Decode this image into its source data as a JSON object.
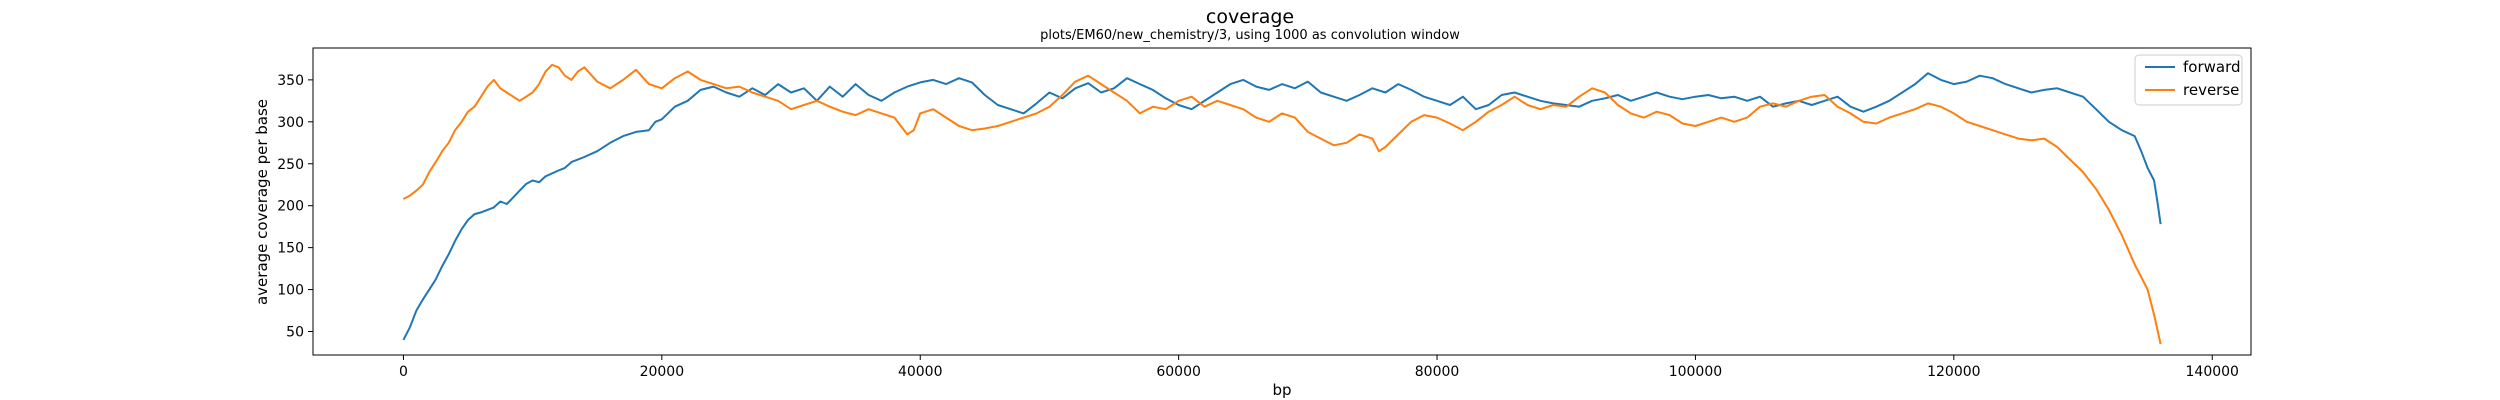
{
  "chart_data": {
    "type": "line",
    "title": "coverage",
    "subtitle": "plots/EM60/new_chemistry/3, using 1000 as convolution window",
    "xlabel": "bp",
    "ylabel": "average coverage per base",
    "xlim": [
      -7000,
      143000
    ],
    "ylim": [
      22,
      388
    ],
    "x_ticks": [
      0,
      20000,
      40000,
      60000,
      80000,
      100000,
      120000,
      140000
    ],
    "y_ticks": [
      50,
      100,
      150,
      200,
      250,
      300,
      350
    ],
    "grid": false,
    "legend_position": "top-right",
    "series": [
      {
        "name": "forward",
        "color": "#1f77b4",
        "points": [
          [
            0,
            40
          ],
          [
            500,
            55
          ],
          [
            1000,
            75
          ],
          [
            1500,
            88
          ],
          [
            2000,
            100
          ],
          [
            2500,
            112
          ],
          [
            3000,
            128
          ],
          [
            3500,
            142
          ],
          [
            4000,
            158
          ],
          [
            4500,
            172
          ],
          [
            5000,
            183
          ],
          [
            5500,
            190
          ],
          [
            6000,
            192
          ],
          [
            6500,
            195
          ],
          [
            7000,
            198
          ],
          [
            7500,
            205
          ],
          [
            8000,
            202
          ],
          [
            8500,
            210
          ],
          [
            9000,
            218
          ],
          [
            9500,
            226
          ],
          [
            10000,
            230
          ],
          [
            10500,
            228
          ],
          [
            11000,
            235
          ],
          [
            12000,
            242
          ],
          [
            12500,
            245
          ],
          [
            13000,
            252
          ],
          [
            14000,
            258
          ],
          [
            15000,
            265
          ],
          [
            16000,
            275
          ],
          [
            17000,
            283
          ],
          [
            18000,
            288
          ],
          [
            19000,
            290
          ],
          [
            19500,
            300
          ],
          [
            20000,
            303
          ],
          [
            21000,
            318
          ],
          [
            22000,
            325
          ],
          [
            23000,
            338
          ],
          [
            24000,
            342
          ],
          [
            25000,
            335
          ],
          [
            26000,
            330
          ],
          [
            27000,
            340
          ],
          [
            28000,
            332
          ],
          [
            29000,
            345
          ],
          [
            30000,
            335
          ],
          [
            31000,
            340
          ],
          [
            32000,
            325
          ],
          [
            33000,
            342
          ],
          [
            34000,
            330
          ],
          [
            35000,
            345
          ],
          [
            36000,
            332
          ],
          [
            37000,
            325
          ],
          [
            38000,
            335
          ],
          [
            39000,
            342
          ],
          [
            40000,
            347
          ],
          [
            41000,
            350
          ],
          [
            42000,
            345
          ],
          [
            43000,
            352
          ],
          [
            44000,
            347
          ],
          [
            45000,
            332
          ],
          [
            46000,
            320
          ],
          [
            47000,
            315
          ],
          [
            48000,
            310
          ],
          [
            49000,
            322
          ],
          [
            50000,
            335
          ],
          [
            51000,
            328
          ],
          [
            52000,
            340
          ],
          [
            53000,
            346
          ],
          [
            54000,
            335
          ],
          [
            55000,
            340
          ],
          [
            56000,
            352
          ],
          [
            57000,
            345
          ],
          [
            58000,
            338
          ],
          [
            59000,
            328
          ],
          [
            60000,
            320
          ],
          [
            61000,
            315
          ],
          [
            62000,
            325
          ],
          [
            63000,
            335
          ],
          [
            64000,
            345
          ],
          [
            65000,
            350
          ],
          [
            66000,
            342
          ],
          [
            67000,
            338
          ],
          [
            68000,
            345
          ],
          [
            69000,
            340
          ],
          [
            70000,
            348
          ],
          [
            71000,
            335
          ],
          [
            72000,
            330
          ],
          [
            73000,
            325
          ],
          [
            74000,
            332
          ],
          [
            75000,
            340
          ],
          [
            76000,
            335
          ],
          [
            77000,
            345
          ],
          [
            78000,
            338
          ],
          [
            79000,
            330
          ],
          [
            80000,
            325
          ],
          [
            81000,
            320
          ],
          [
            82000,
            330
          ],
          [
            83000,
            315
          ],
          [
            84000,
            320
          ],
          [
            85000,
            332
          ],
          [
            86000,
            335
          ],
          [
            87000,
            330
          ],
          [
            88000,
            325
          ],
          [
            89000,
            322
          ],
          [
            90000,
            320
          ],
          [
            91000,
            318
          ],
          [
            92000,
            325
          ],
          [
            93000,
            328
          ],
          [
            94000,
            332
          ],
          [
            95000,
            325
          ],
          [
            96000,
            330
          ],
          [
            97000,
            335
          ],
          [
            98000,
            330
          ],
          [
            99000,
            327
          ],
          [
            100000,
            330
          ],
          [
            101000,
            332
          ],
          [
            102000,
            328
          ],
          [
            103000,
            330
          ],
          [
            104000,
            325
          ],
          [
            105000,
            330
          ],
          [
            106000,
            318
          ],
          [
            107000,
            322
          ],
          [
            108000,
            325
          ],
          [
            109000,
            320
          ],
          [
            110000,
            325
          ],
          [
            111000,
            330
          ],
          [
            112000,
            318
          ],
          [
            113000,
            312
          ],
          [
            114000,
            318
          ],
          [
            115000,
            325
          ],
          [
            116000,
            335
          ],
          [
            117000,
            345
          ],
          [
            118000,
            358
          ],
          [
            119000,
            350
          ],
          [
            120000,
            345
          ],
          [
            121000,
            348
          ],
          [
            122000,
            355
          ],
          [
            123000,
            352
          ],
          [
            124000,
            345
          ],
          [
            125000,
            340
          ],
          [
            126000,
            335
          ],
          [
            127000,
            338
          ],
          [
            128000,
            340
          ],
          [
            129000,
            335
          ],
          [
            130000,
            330
          ],
          [
            131000,
            315
          ],
          [
            132000,
            300
          ],
          [
            133000,
            290
          ],
          [
            134000,
            283
          ],
          [
            134500,
            265
          ],
          [
            135000,
            245
          ],
          [
            135500,
            230
          ],
          [
            135800,
            200
          ],
          [
            136000,
            178
          ]
        ]
      },
      {
        "name": "reverse",
        "color": "#ff7f0e",
        "points": [
          [
            0,
            208
          ],
          [
            500,
            212
          ],
          [
            1000,
            218
          ],
          [
            1500,
            225
          ],
          [
            2000,
            240
          ],
          [
            2500,
            252
          ],
          [
            3000,
            265
          ],
          [
            3500,
            275
          ],
          [
            4000,
            290
          ],
          [
            4500,
            300
          ],
          [
            5000,
            312
          ],
          [
            5500,
            318
          ],
          [
            6000,
            330
          ],
          [
            6500,
            342
          ],
          [
            7000,
            350
          ],
          [
            7500,
            340
          ],
          [
            8000,
            335
          ],
          [
            9000,
            325
          ],
          [
            10000,
            335
          ],
          [
            10500,
            345
          ],
          [
            11000,
            360
          ],
          [
            11500,
            368
          ],
          [
            12000,
            365
          ],
          [
            12500,
            355
          ],
          [
            13000,
            350
          ],
          [
            13500,
            360
          ],
          [
            14000,
            365
          ],
          [
            15000,
            348
          ],
          [
            16000,
            340
          ],
          [
            17000,
            350
          ],
          [
            18000,
            362
          ],
          [
            19000,
            345
          ],
          [
            20000,
            340
          ],
          [
            21000,
            352
          ],
          [
            22000,
            360
          ],
          [
            23000,
            350
          ],
          [
            24000,
            345
          ],
          [
            25000,
            340
          ],
          [
            26000,
            342
          ],
          [
            27000,
            335
          ],
          [
            28000,
            330
          ],
          [
            29000,
            325
          ],
          [
            30000,
            315
          ],
          [
            31000,
            320
          ],
          [
            32000,
            325
          ],
          [
            33000,
            318
          ],
          [
            34000,
            312
          ],
          [
            35000,
            308
          ],
          [
            36000,
            315
          ],
          [
            37000,
            310
          ],
          [
            38000,
            305
          ],
          [
            39000,
            285
          ],
          [
            39500,
            290
          ],
          [
            40000,
            310
          ],
          [
            41000,
            315
          ],
          [
            42000,
            305
          ],
          [
            43000,
            295
          ],
          [
            44000,
            290
          ],
          [
            45000,
            292
          ],
          [
            46000,
            295
          ],
          [
            47000,
            300
          ],
          [
            48000,
            305
          ],
          [
            49000,
            310
          ],
          [
            50000,
            318
          ],
          [
            51000,
            332
          ],
          [
            52000,
            348
          ],
          [
            53000,
            355
          ],
          [
            54000,
            345
          ],
          [
            55000,
            335
          ],
          [
            56000,
            325
          ],
          [
            57000,
            310
          ],
          [
            58000,
            318
          ],
          [
            59000,
            315
          ],
          [
            60000,
            325
          ],
          [
            61000,
            330
          ],
          [
            62000,
            318
          ],
          [
            63000,
            325
          ],
          [
            64000,
            320
          ],
          [
            65000,
            315
          ],
          [
            66000,
            305
          ],
          [
            67000,
            300
          ],
          [
            68000,
            310
          ],
          [
            69000,
            305
          ],
          [
            70000,
            288
          ],
          [
            71000,
            280
          ],
          [
            72000,
            272
          ],
          [
            73000,
            275
          ],
          [
            74000,
            285
          ],
          [
            75000,
            280
          ],
          [
            75500,
            265
          ],
          [
            76000,
            270
          ],
          [
            77000,
            285
          ],
          [
            78000,
            300
          ],
          [
            79000,
            308
          ],
          [
            80000,
            305
          ],
          [
            81000,
            298
          ],
          [
            82000,
            290
          ],
          [
            83000,
            300
          ],
          [
            84000,
            312
          ],
          [
            85000,
            320
          ],
          [
            86000,
            330
          ],
          [
            87000,
            320
          ],
          [
            88000,
            315
          ],
          [
            89000,
            320
          ],
          [
            90000,
            318
          ],
          [
            91000,
            330
          ],
          [
            92000,
            340
          ],
          [
            93000,
            335
          ],
          [
            94000,
            320
          ],
          [
            95000,
            310
          ],
          [
            96000,
            305
          ],
          [
            97000,
            312
          ],
          [
            98000,
            308
          ],
          [
            99000,
            298
          ],
          [
            100000,
            295
          ],
          [
            101000,
            300
          ],
          [
            102000,
            305
          ],
          [
            103000,
            300
          ],
          [
            104000,
            305
          ],
          [
            105000,
            318
          ],
          [
            106000,
            322
          ],
          [
            107000,
            318
          ],
          [
            108000,
            325
          ],
          [
            109000,
            330
          ],
          [
            110000,
            332
          ],
          [
            111000,
            318
          ],
          [
            112000,
            310
          ],
          [
            113000,
            300
          ],
          [
            114000,
            298
          ],
          [
            115000,
            305
          ],
          [
            116000,
            310
          ],
          [
            117000,
            315
          ],
          [
            118000,
            322
          ],
          [
            119000,
            318
          ],
          [
            120000,
            310
          ],
          [
            121000,
            300
          ],
          [
            122000,
            295
          ],
          [
            123000,
            290
          ],
          [
            124000,
            285
          ],
          [
            125000,
            280
          ],
          [
            126000,
            278
          ],
          [
            127000,
            280
          ],
          [
            128000,
            270
          ],
          [
            129000,
            255
          ],
          [
            130000,
            240
          ],
          [
            131000,
            220
          ],
          [
            132000,
            195
          ],
          [
            133000,
            165
          ],
          [
            134000,
            130
          ],
          [
            134500,
            115
          ],
          [
            135000,
            100
          ],
          [
            135500,
            70
          ],
          [
            136000,
            35
          ]
        ]
      }
    ]
  }
}
